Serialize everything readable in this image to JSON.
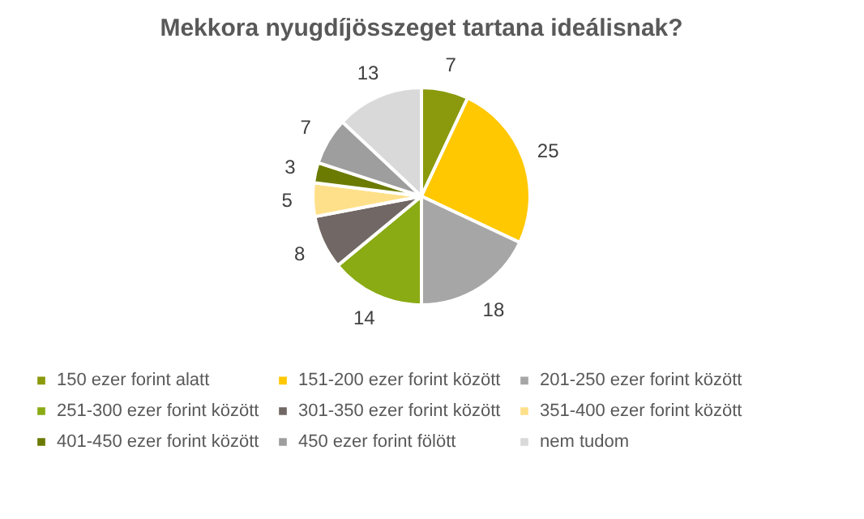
{
  "chart_data": {
    "type": "pie",
    "title": "Mekkora nyugdíjösszeget tartana ideálisnak?",
    "categories": [
      "150 ezer forint alatt",
      "151-200 ezer forint között",
      "201-250 ezer forint között",
      "251-300 ezer forint között",
      "301-350 ezer forint között",
      "351-400 ezer forint között",
      "401-450 ezer forint között",
      "450 ezer forint fölött",
      "nem tudom"
    ],
    "values": [
      7,
      25,
      18,
      14,
      8,
      5,
      3,
      7,
      13
    ],
    "colors": [
      "#8a9a0c",
      "#ffc800",
      "#a6a6a6",
      "#8aab14",
      "#716764",
      "#ffe08a",
      "#6b7a00",
      "#9e9e9e",
      "#d9d9d9"
    ],
    "data_labels": true,
    "legend": "bottom"
  }
}
